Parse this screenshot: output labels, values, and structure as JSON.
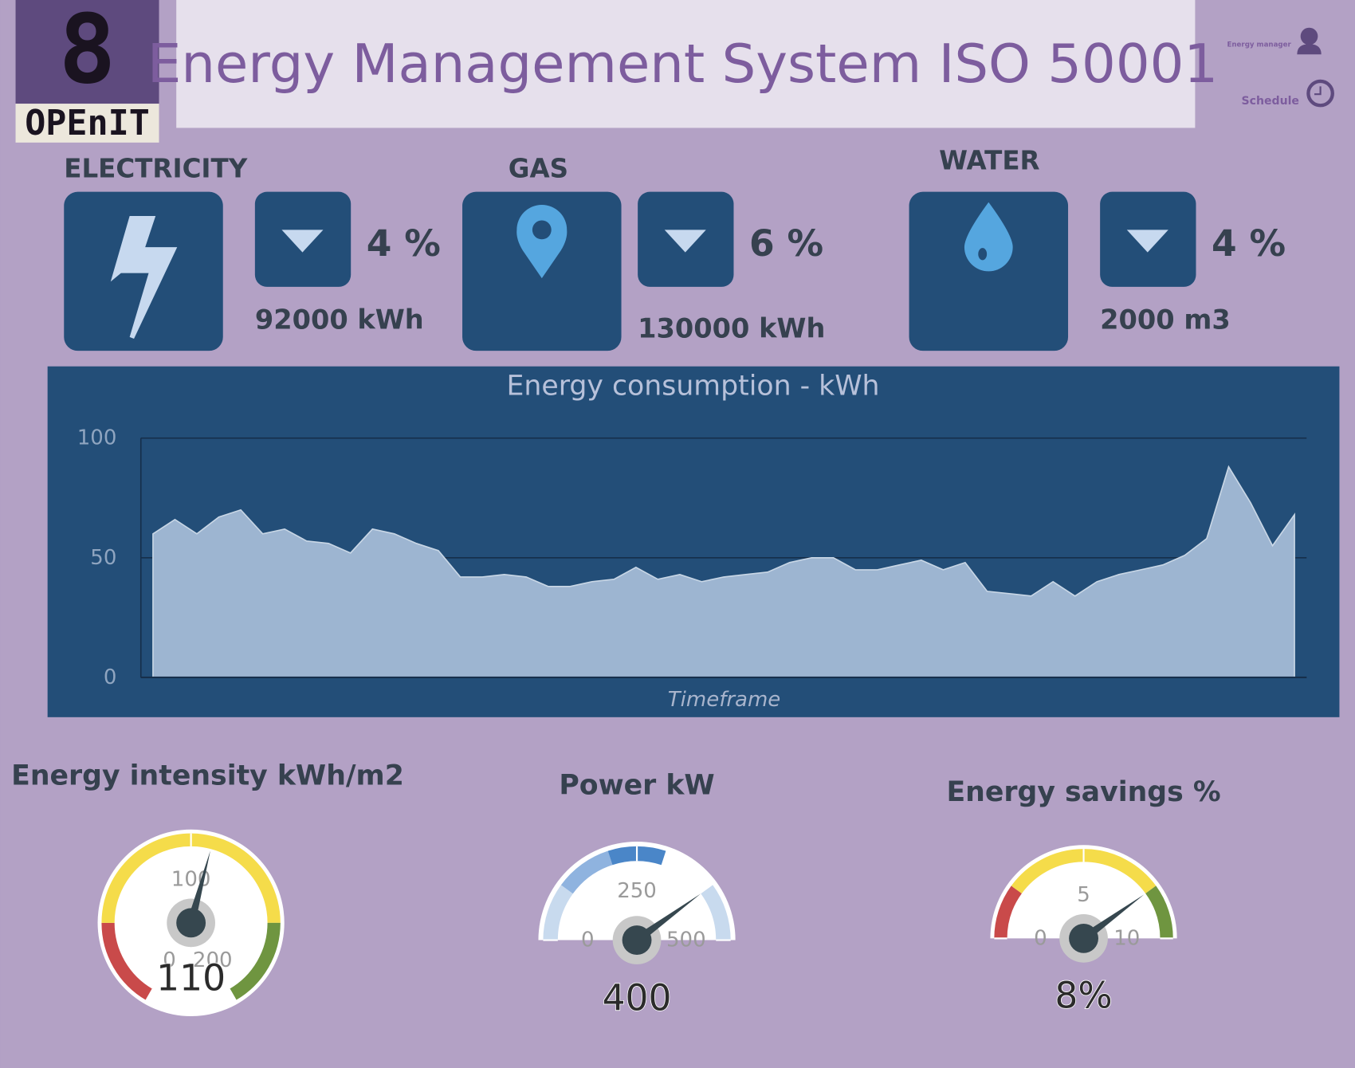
{
  "header": {
    "logo": {
      "digit": "8",
      "name": "OPEnIT"
    },
    "title": "Energy Management System ISO 50001",
    "user": "Energy manager",
    "schedule": "Schedule"
  },
  "cards": [
    {
      "label": "ELECTRICITY",
      "change": "4 %",
      "amount": "92000 kWh"
    },
    {
      "label": "GAS",
      "change": "6 %",
      "amount": "130000 kWh"
    },
    {
      "label": "WATER",
      "change": "4 %",
      "amount": "2000 m3"
    }
  ],
  "chart_data": [
    {
      "type": "area",
      "title": "Energy consumption - kWh",
      "x_label": "Timeframe",
      "categories": [
        null,
        null,
        null,
        null,
        null,
        null,
        null,
        null,
        null,
        null,
        null,
        null,
        null,
        null,
        null,
        null,
        null,
        null,
        null,
        null,
        null,
        null,
        null,
        null,
        null,
        null,
        null,
        null,
        null,
        null,
        null,
        null,
        null,
        null,
        null,
        null,
        null,
        null,
        null,
        null,
        null,
        null,
        null,
        null,
        null,
        null,
        null,
        null,
        null,
        null,
        null,
        null,
        null
      ],
      "values": [
        60,
        66,
        60,
        67,
        70,
        60,
        62,
        57,
        56,
        52,
        62,
        60,
        56,
        53,
        42,
        42,
        43,
        42,
        38,
        38,
        40,
        41,
        46,
        41,
        43,
        40,
        42,
        43,
        44,
        48,
        50,
        50,
        45,
        45,
        47,
        49,
        45,
        48,
        36,
        35,
        34,
        40,
        34,
        40,
        43,
        45,
        47,
        51,
        58,
        88,
        73,
        55,
        68
      ],
      "color": "#9db5d1",
      "ylim": [
        0,
        100
      ],
      "yticks": [
        0,
        50,
        100
      ],
      "grid": true
    },
    {
      "type": "gauge",
      "title": "Energy intensity kWh/m2",
      "value": 110,
      "lim": [
        0,
        200
      ],
      "ticks": [
        0,
        100,
        200
      ],
      "bands": [
        {
          "from": 0,
          "to": 40,
          "color": "#c94a4a"
        },
        {
          "from": 40,
          "to": 160,
          "color": "#f5dc4a"
        },
        {
          "from": 160,
          "to": 200,
          "color": "#6f9540"
        }
      ]
    },
    {
      "type": "gauge",
      "title": "Power kW",
      "value": 400,
      "lim": [
        0,
        500
      ],
      "ticks": [
        0,
        250,
        500
      ],
      "bands": [
        {
          "from": 0,
          "to": 100,
          "color": "#c8daee"
        },
        {
          "from": 100,
          "to": 200,
          "color": "#8fb3df"
        },
        {
          "from": 200,
          "to": 300,
          "color": "#4a86c8"
        },
        {
          "from": 400,
          "to": 500,
          "color": "#c8daee"
        }
      ]
    },
    {
      "type": "gauge",
      "title": "Energy savings %",
      "value": 8,
      "value_label": "8%",
      "lim": [
        0,
        10
      ],
      "ticks": [
        0,
        5,
        10
      ],
      "bands": [
        {
          "from": 0,
          "to": 2,
          "color": "#c94a4a"
        },
        {
          "from": 2,
          "to": 8,
          "color": "#f5dc4a"
        },
        {
          "from": 8,
          "to": 10,
          "color": "#6f9540"
        }
      ]
    }
  ]
}
